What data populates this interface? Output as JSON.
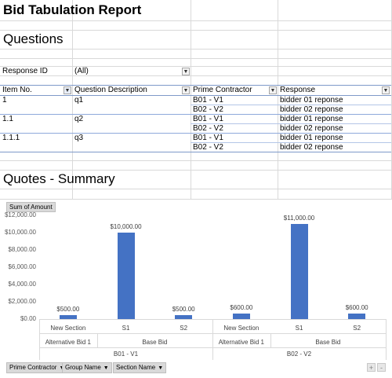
{
  "report": {
    "title": "Bid Tabulation Report"
  },
  "questions": {
    "heading": "Questions",
    "filter_label": "Response ID",
    "filter_value": "(All)",
    "headers": [
      "Item No.",
      "Question Description",
      "Prime Contractor",
      "Response"
    ],
    "rows": [
      {
        "item": "1",
        "desc": "q1",
        "contractor": "B01 - V1",
        "response": "bidder 01 reponse"
      },
      {
        "item": "",
        "desc": "",
        "contractor": "B02 - V2",
        "response": "bidder 02 reponse"
      },
      {
        "item": "1.1",
        "desc": "q2",
        "contractor": "B01 - V1",
        "response": "bidder 01 reponse"
      },
      {
        "item": "",
        "desc": "",
        "contractor": "B02 - V2",
        "response": "bidder 02 reponse"
      },
      {
        "item": "1.1.1",
        "desc": "q3",
        "contractor": "B01 - V1",
        "response": "bidder 01 reponse"
      },
      {
        "item": "",
        "desc": "",
        "contractor": "B02 - V2",
        "response": "bidder 02 reponse"
      }
    ]
  },
  "quotes": {
    "heading": "Quotes - Summary",
    "value_button": "Sum of Amount",
    "axis_buttons": [
      "Prime Contractor",
      "Group Name",
      "Section Name"
    ],
    "corner_buttons": [
      "+",
      "-"
    ]
  },
  "chart_data": {
    "type": "bar",
    "ylim": [
      0,
      12000
    ],
    "yticks": [
      "$0.00",
      "$2,000.00",
      "$4,000.00",
      "$6,000.00",
      "$8,000.00",
      "$10,000.00",
      "$12,000.00"
    ],
    "ytick_values": [
      0,
      2000,
      4000,
      6000,
      8000,
      10000,
      12000
    ],
    "categories": [
      "New Section",
      "S1",
      "S2",
      "New Section",
      "S1",
      "S2"
    ],
    "groups_level2": [
      {
        "label": "Alternative Bid 1",
        "span": 1
      },
      {
        "label": "Base Bid",
        "span": 2
      },
      {
        "label": "Alternative Bid 1",
        "span": 1
      },
      {
        "label": "Base Bid",
        "span": 2
      }
    ],
    "groups_level1": [
      {
        "label": "B01 - V1",
        "span": 3
      },
      {
        "label": "B02 - V2",
        "span": 3
      }
    ],
    "values": [
      500,
      10000,
      500,
      600,
      11000,
      600
    ],
    "data_labels": [
      "$500.00",
      "$10,000.00",
      "$500.00",
      "$600.00",
      "$11,000.00",
      "$600.00"
    ],
    "bar_color": "#4472c4",
    "grid": false
  }
}
